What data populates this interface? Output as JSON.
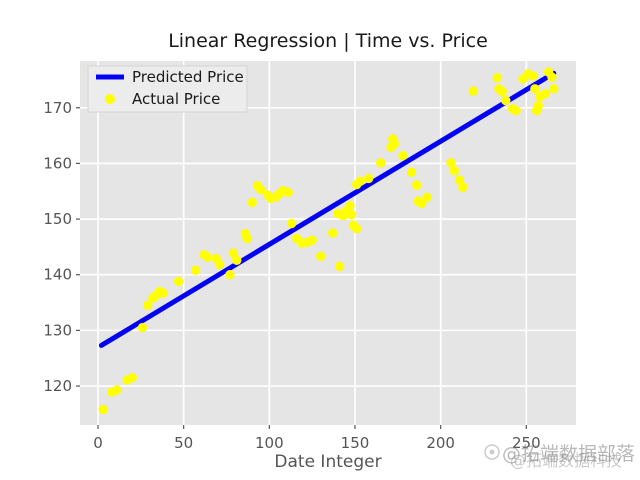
{
  "chart_data": {
    "type": "scatter",
    "title": "Linear Regression | Time vs. Price",
    "xlabel": "Date Integer",
    "ylabel": "",
    "xticks": [
      0,
      50,
      100,
      150,
      200,
      250
    ],
    "yticks": [
      120,
      130,
      140,
      150,
      160,
      170
    ],
    "xlim": [
      -10.5,
      279.0
    ],
    "ylim": [
      113.0,
      178.4
    ],
    "grid": true,
    "plot_bg_color": "#e5e5e5",
    "grid_color": "#ffffff",
    "tick_color": "#555555",
    "legend": {
      "position": "upper left",
      "entries": [
        {
          "label": "Predicted Price",
          "type": "line",
          "color": "#0303f2"
        },
        {
          "label": "Actual Price",
          "type": "point",
          "color": "#ffff00"
        }
      ]
    },
    "series": [
      {
        "name": "Predicted Price",
        "type": "line",
        "color": "#0303f2",
        "x": [
          2,
          266
        ],
        "y": [
          127.3,
          176.2
        ]
      },
      {
        "name": "Actual Price",
        "type": "scatter",
        "color": "#ffff00",
        "points": [
          [
            3,
            115.8
          ],
          [
            8,
            118.9
          ],
          [
            11,
            119.3
          ],
          [
            17,
            121.1
          ],
          [
            20,
            121.5
          ],
          [
            26,
            130.5
          ],
          [
            29,
            134.5
          ],
          [
            32,
            135.8
          ],
          [
            34,
            136.3
          ],
          [
            36,
            137.0
          ],
          [
            38,
            136.7
          ],
          [
            47,
            138.8
          ],
          [
            57,
            140.8
          ],
          [
            62,
            143.6
          ],
          [
            64,
            143.2
          ],
          [
            69,
            142.9
          ],
          [
            71,
            141.8
          ],
          [
            77,
            140.0
          ],
          [
            79,
            143.9
          ],
          [
            81,
            142.6
          ],
          [
            86,
            147.4
          ],
          [
            87,
            146.5
          ],
          [
            90,
            153.0
          ],
          [
            93,
            156.0
          ],
          [
            95,
            155.3
          ],
          [
            99,
            154.3
          ],
          [
            101,
            153.7
          ],
          [
            104,
            154.0
          ],
          [
            106,
            154.6
          ],
          [
            108,
            155.1
          ],
          [
            111,
            154.8
          ],
          [
            113,
            149.2
          ],
          [
            116,
            146.5
          ],
          [
            119,
            145.7
          ],
          [
            122,
            145.8
          ],
          [
            125,
            146.2
          ],
          [
            130,
            143.3
          ],
          [
            137,
            147.5
          ],
          [
            141,
            141.5
          ],
          [
            140,
            151.0
          ],
          [
            143,
            150.6
          ],
          [
            145,
            151.5
          ],
          [
            147,
            152.4
          ],
          [
            148,
            150.8
          ],
          [
            149,
            148.9
          ],
          [
            151,
            148.3
          ],
          [
            151,
            156.2
          ],
          [
            153,
            156.8
          ],
          [
            158,
            157.3
          ],
          [
            165,
            160.1
          ],
          [
            171,
            162.9
          ],
          [
            172,
            164.4
          ],
          [
            173,
            163.5
          ],
          [
            178,
            161.4
          ],
          [
            183,
            158.4
          ],
          [
            186,
            156.1
          ],
          [
            187,
            153.2
          ],
          [
            189,
            152.8
          ],
          [
            192,
            153.9
          ],
          [
            206,
            160.1
          ],
          [
            208,
            158.7
          ],
          [
            211,
            157.0
          ],
          [
            213,
            155.7
          ],
          [
            219,
            173.0
          ],
          [
            233,
            175.4
          ],
          [
            234,
            173.4
          ],
          [
            236,
            172.9
          ],
          [
            238,
            171.3
          ],
          [
            242,
            169.8
          ],
          [
            244,
            169.5
          ],
          [
            248,
            175.2
          ],
          [
            251,
            176.1
          ],
          [
            254,
            175.7
          ],
          [
            255,
            173.4
          ],
          [
            256,
            169.5
          ],
          [
            257,
            170.4
          ],
          [
            258,
            172.0
          ],
          [
            261,
            172.5
          ],
          [
            263,
            176.4
          ],
          [
            265,
            175.5
          ],
          [
            266,
            173.4
          ]
        ]
      }
    ]
  },
  "watermark": {
    "line1": "@拓端数据部落",
    "line2": "@拓端数据科技"
  }
}
